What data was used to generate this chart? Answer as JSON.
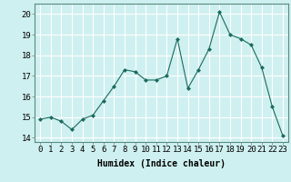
{
  "x": [
    0,
    1,
    2,
    3,
    4,
    5,
    6,
    7,
    8,
    9,
    10,
    11,
    12,
    13,
    14,
    15,
    16,
    17,
    18,
    19,
    20,
    21,
    22,
    23
  ],
  "y": [
    14.9,
    15.0,
    14.8,
    14.4,
    14.9,
    15.1,
    15.8,
    16.5,
    17.3,
    17.2,
    16.8,
    16.8,
    17.0,
    18.8,
    16.4,
    17.3,
    18.3,
    20.1,
    19.0,
    18.8,
    18.5,
    17.4,
    15.5,
    14.1
  ],
  "line_color": "#1a6b5e",
  "marker": "D",
  "marker_size": 2.0,
  "bg_color": "#cff0f0",
  "grid_color": "#ffffff",
  "grid_minor_color": "#dff5f5",
  "xlabel": "Humidex (Indice chaleur)",
  "ylabel_ticks": [
    14,
    15,
    16,
    17,
    18,
    19,
    20
  ],
  "xlim": [
    -0.5,
    23.5
  ],
  "ylim": [
    13.8,
    20.5
  ],
  "label_fontsize": 7,
  "tick_fontsize": 6.5
}
